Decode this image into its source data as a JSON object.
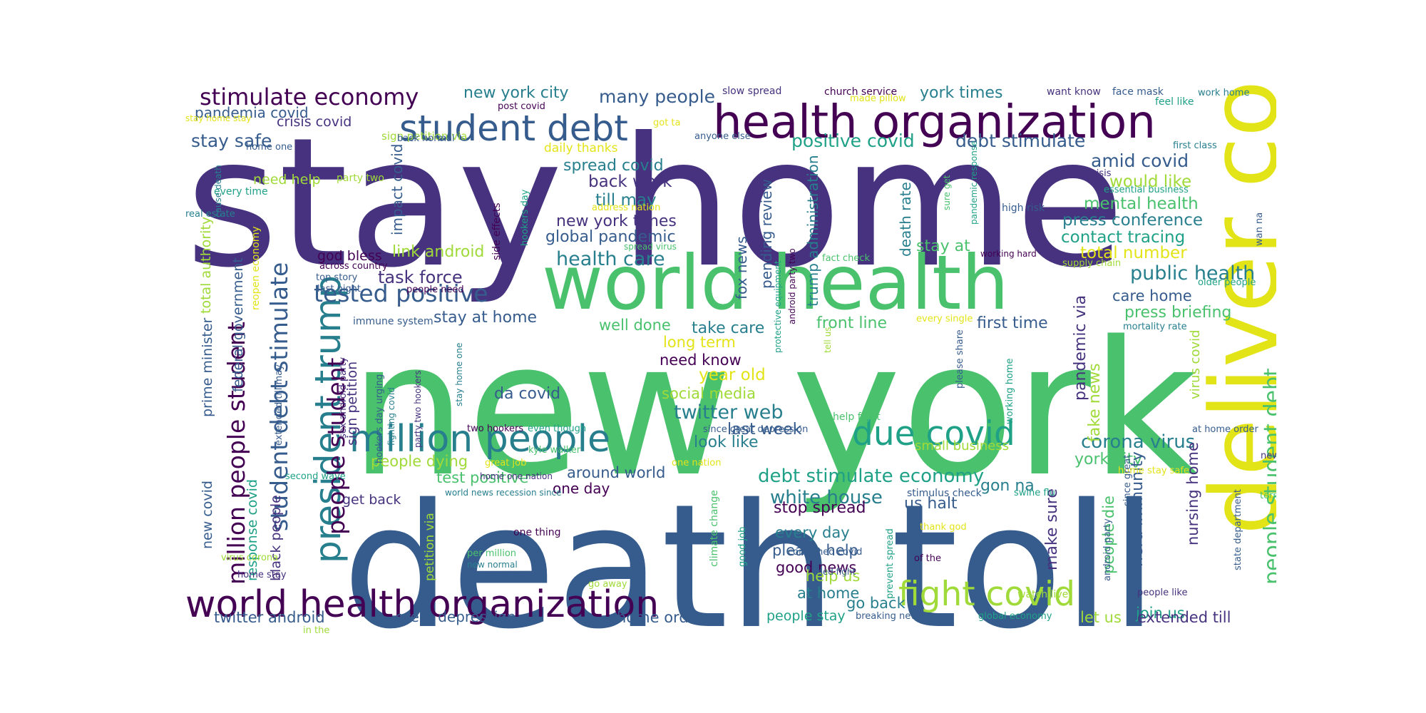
{
  "palette": {
    "c0": "#440154",
    "c1": "#46327e",
    "c2": "#365c8d",
    "c3": "#277f8e",
    "c4": "#1fa187",
    "c5": "#4ac16d",
    "c6": "#a0da39",
    "c7": "#e3e418"
  },
  "words": [
    "stay home",
    "new york",
    "death toll",
    "deliver copy",
    "world health",
    "health organization",
    "world health organization",
    "student debt",
    "million people",
    "president trump",
    "due covid",
    "fight covid",
    "stimulate economy",
    "people student debt",
    "million people student",
    "student debt stimulate",
    "people student",
    "tested positive",
    "public health",
    "debt stimulate economy",
    "white house",
    "corona virus",
    "health care",
    "new york city",
    "many people",
    "pandemia covid",
    "stay safe",
    "crisis covid",
    "positive covid",
    "debt stimulate",
    "york times",
    "amid covid",
    "spread covid",
    "back work",
    "till may",
    "would like",
    "mental health",
    "press conference",
    "new york times",
    "global pandemic",
    "contact tracing",
    "total number",
    "link android",
    "task force",
    "god bless",
    "stay at home",
    "care home",
    "press briefing",
    "first time",
    "front line",
    "well done",
    "take care",
    "long term",
    "need know",
    "year old",
    "social media",
    "da covid",
    "twitter web",
    "last week",
    "look like",
    "york city",
    "fake news",
    "pandemic via",
    "people dying",
    "test positive",
    "around world",
    "one day",
    "stop spread",
    "every day",
    "please help",
    "good news",
    "help us",
    "at home",
    "go back",
    "us halt",
    "gon na",
    "make sure",
    "people die",
    "join us",
    "herd immunity",
    "nursing home",
    "twitter android",
    "great depression",
    "home order",
    "people stay",
    "let us",
    "extended till",
    "need help",
    "get back",
    "prime minister",
    "new covid",
    "federal government",
    "total authority",
    "response covid",
    "black people",
    "sign petition",
    "impact covid",
    "stay at",
    "fox news",
    "pending review",
    "trump administration",
    "death rate",
    "small business",
    "virus covid",
    "daily thanks",
    "sign petition via",
    "party two",
    "every time",
    "real estate",
    "cause death",
    "stay home stay",
    "back normal",
    "home one",
    "slow spread",
    "church service",
    "want know",
    "face mask",
    "work home",
    "post covid",
    "got ta",
    "made pillow",
    "feel like",
    "first class",
    "health crisis",
    "essential business",
    "high risk",
    "wan na",
    "tested positive covid",
    "supply chain",
    "older people",
    "working hard",
    "fact check",
    "mortality rate",
    "every single",
    "across country",
    "top story",
    "last night",
    "people need",
    "immune system",
    "reopen economy",
    "extended till may",
    "sex android party",
    "hookers day urging",
    "fighting covid",
    "party two hookers",
    "stay home one",
    "two hookers",
    "even though",
    "kyle walker",
    "great job",
    "second wave",
    "home one nation",
    "one nation",
    "world news recession since",
    "since great depression",
    "help fight",
    "at home order",
    "new post",
    "home stay safe",
    "stimulus check",
    "swine flu",
    "term care",
    "two hookers day",
    "people stay home",
    "long term care",
    "confirmed covid",
    "of the",
    "thank god",
    "watch live",
    "people like",
    "global economy",
    "breaking news",
    "used fight",
    "prevent spread",
    "go away",
    "new normal",
    "per million",
    "one thing",
    "home stay",
    "virus corona",
    "in the",
    "climate change",
    "good job",
    "android party",
    "state department",
    "since great",
    "please share",
    "working home",
    "protective equipment",
    "android party two",
    "tell us",
    "sure get",
    "pandemic response",
    "side effects",
    "hookers day",
    "address nation",
    "anyone else",
    "spread virus",
    "petition via"
  ]
}
